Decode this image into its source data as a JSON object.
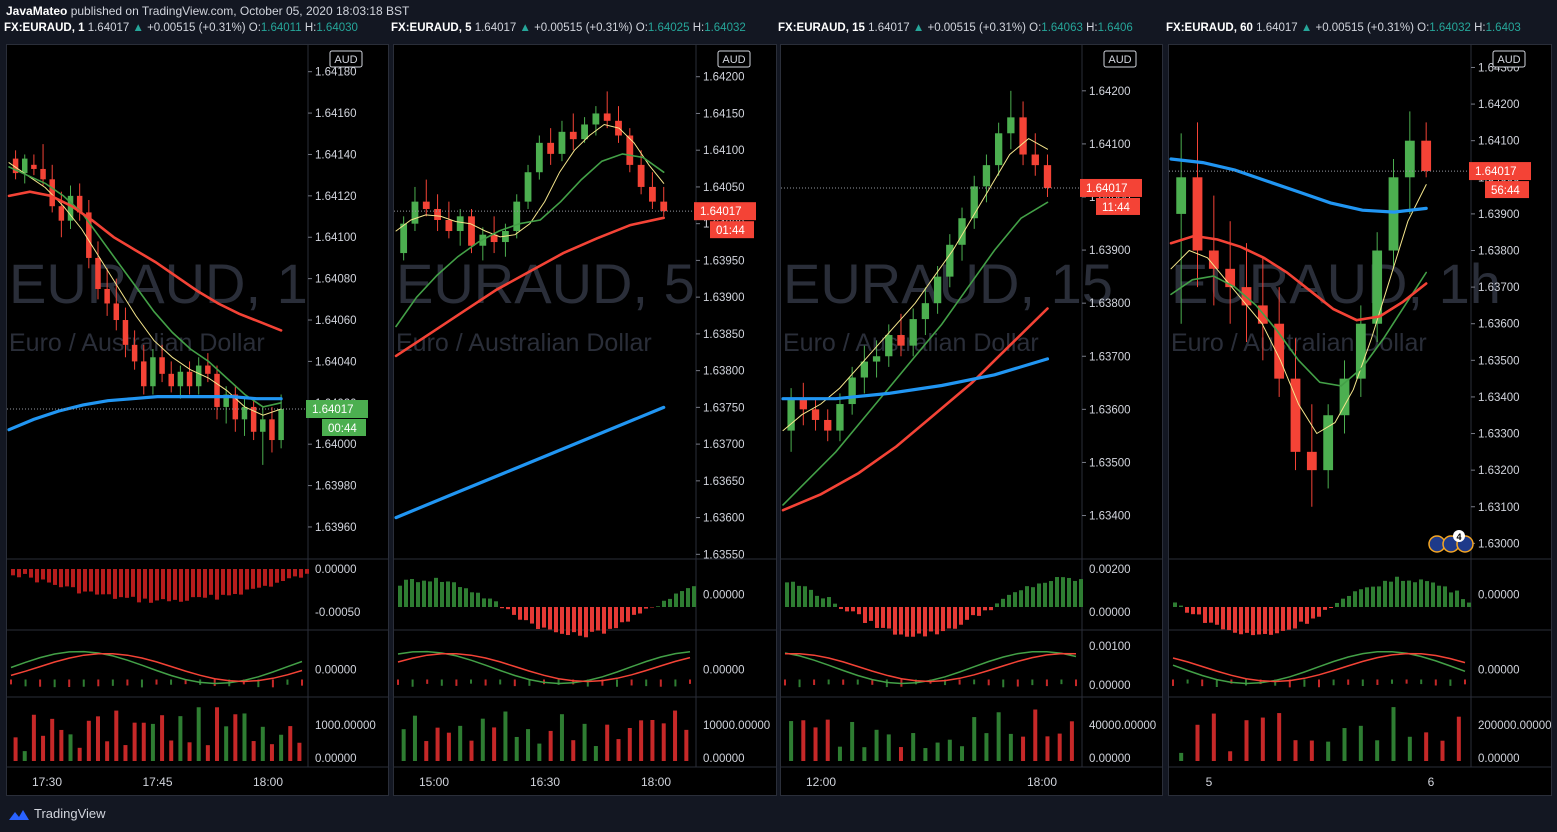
{
  "header": {
    "author": "JavaMateo",
    "published_text": " published on TradingView.com, October 05, 2020 18:03:18 BST"
  },
  "footer": {
    "brand": "TradingView"
  },
  "colors": {
    "background": "#000000",
    "up": "#26a69a",
    "candle_up": "#4caf50",
    "candle_down": "#f44336",
    "ma_fast": "#f5e68c",
    "ma_mid": "#43a047",
    "ma_slow": "#f44336",
    "ma_long": "#2196f3",
    "price_label_up": "#4caf50",
    "price_label_down": "#f44336"
  },
  "panels": [
    {
      "legend": {
        "symbol": "FX:EURAUD, 1",
        "last": "1.64017",
        "arrow": "▲",
        "change": "+0.00515 (+0.31%)",
        "open_label": "O:",
        "open": "1.64011",
        "high_label": "H:",
        "high": "1.64030"
      },
      "watermark": "EURAUD, 1",
      "watermark_sub": "Euro / Australian Dollar",
      "currency": "AUD",
      "price_ticks": [
        "1.64180",
        "1.64160",
        "1.64140",
        "1.64120",
        "1.64100",
        "1.64080",
        "1.64060",
        "1.64040",
        "1.64020",
        "1.64000",
        "1.63980",
        "1.63960"
      ],
      "price_range": [
        1.63945,
        1.6419
      ],
      "last_price": "1.64017",
      "countdown": "00:44",
      "label_dir": "up",
      "ind1_ticks": [
        "0.00000",
        "-0.00050"
      ],
      "ind2_ticks": [
        "0.00000"
      ],
      "ind3_ticks": [
        "1000.00000",
        "0.00000"
      ],
      "time_ticks": [
        "17:30",
        "17:45",
        "18:00"
      ]
    },
    {
      "legend": {
        "symbol": "FX:EURAUD, 5",
        "last": "1.64017",
        "arrow": "▲",
        "change": "+0.00515 (+0.31%)",
        "open_label": "O:",
        "open": "1.64025",
        "high_label": "H:",
        "high": "1.64032"
      },
      "watermark": "EURAUD, 5",
      "watermark_sub": "Euro / Australian Dollar",
      "currency": "AUD",
      "price_ticks": [
        "1.64200",
        "1.64150",
        "1.64100",
        "1.64050",
        "1.64000",
        "1.63950",
        "1.63900",
        "1.63850",
        "1.63800",
        "1.63750",
        "1.63700",
        "1.63650",
        "1.63600",
        "1.63550"
      ],
      "price_range": [
        1.63545,
        1.64235
      ],
      "last_price": "1.64017",
      "countdown": "01:44",
      "label_dir": "down",
      "ind1_ticks": [
        "0.00000"
      ],
      "ind2_ticks": [
        "0.00000"
      ],
      "ind3_ticks": [
        "10000.00000",
        "0.00000"
      ],
      "time_ticks": [
        "15:00",
        "16:30",
        "18:00"
      ]
    },
    {
      "legend": {
        "symbol": "FX:EURAUD, 15",
        "last": "1.64017",
        "arrow": "▲",
        "change": "+0.00515 (+0.31%)",
        "open_label": "O:",
        "open": "1.64063",
        "high_label": "H:",
        "high": "1.6406"
      },
      "watermark": "EURAUD, 15",
      "watermark_sub": "Euro / Australian Dollar",
      "currency": "AUD",
      "price_ticks": [
        "1.64200",
        "1.64100",
        "1.64000",
        "1.63900",
        "1.63800",
        "1.63700",
        "1.63600",
        "1.63500",
        "1.63400"
      ],
      "price_range": [
        1.6332,
        1.64275
      ],
      "last_price": "1.64017",
      "countdown": "11:44",
      "label_dir": "down",
      "ind1_ticks": [
        "0.00200",
        "0.00000"
      ],
      "ind2_ticks": [
        "0.00100",
        "0.00000"
      ],
      "ind3_ticks": [
        "40000.00000",
        "0.00000"
      ],
      "time_ticks": [
        "12:00",
        "18:00"
      ]
    },
    {
      "legend": {
        "symbol": "FX:EURAUD, 60",
        "last": "1.64017",
        "arrow": "▲",
        "change": "+0.00515 (+0.31%)",
        "open_label": "O:",
        "open": "1.64032",
        "high_label": "H:",
        "high": "1.6403"
      },
      "watermark": "EURAUD, 1h",
      "watermark_sub": "Euro / Australian Dollar",
      "currency": "AUD",
      "price_ticks": [
        "1.64300",
        "1.64200",
        "1.64100",
        "1.64000",
        "1.63900",
        "1.63800",
        "1.63700",
        "1.63600",
        "1.63500",
        "1.63400",
        "1.63300",
        "1.63200",
        "1.63100",
        "1.63000"
      ],
      "price_range": [
        1.6296,
        1.64345
      ],
      "last_price": "1.64017",
      "countdown": "56:44",
      "label_dir": "down",
      "events_count": "4",
      "ind1_ticks": [
        "0.00000"
      ],
      "ind2_ticks": [
        "0.00000"
      ],
      "ind3_ticks": [
        "200000.00000",
        "0.00000"
      ],
      "time_ticks": [
        "5",
        "6"
      ]
    }
  ],
  "chart_data": [
    {
      "type": "candlestick",
      "title": "EURAUD, 1",
      "candles": [
        [
          1.64138,
          1.64142,
          1.64128,
          1.64131
        ],
        [
          1.64131,
          1.6414,
          1.64126,
          1.64138
        ],
        [
          1.64135,
          1.6414,
          1.6413,
          1.64133
        ],
        [
          1.64133,
          1.64145,
          1.64125,
          1.64128
        ],
        [
          1.64128,
          1.64135,
          1.64112,
          1.64115
        ],
        [
          1.64115,
          1.64122,
          1.641,
          1.64108
        ],
        [
          1.64108,
          1.64125,
          1.64104,
          1.6412
        ],
        [
          1.6412,
          1.64126,
          1.64108,
          1.64112
        ],
        [
          1.64112,
          1.64118,
          1.64085,
          1.6409
        ],
        [
          1.6409,
          1.64098,
          1.6407,
          1.64075
        ],
        [
          1.64075,
          1.64085,
          1.64062,
          1.64068
        ],
        [
          1.64068,
          1.6408,
          1.64055,
          1.6406
        ],
        [
          1.6406,
          1.64066,
          1.64042,
          1.64048
        ],
        [
          1.64048,
          1.64055,
          1.64036,
          1.6404
        ],
        [
          1.6404,
          1.64048,
          1.64024,
          1.64028
        ],
        [
          1.64028,
          1.64046,
          1.64024,
          1.64042
        ],
        [
          1.64042,
          1.64048,
          1.6403,
          1.64034
        ],
        [
          1.64034,
          1.6404,
          1.64025,
          1.64028
        ],
        [
          1.64028,
          1.64038,
          1.64022,
          1.64035
        ],
        [
          1.64035,
          1.6404,
          1.64024,
          1.64028
        ],
        [
          1.64028,
          1.64042,
          1.64024,
          1.64038
        ],
        [
          1.64038,
          1.64044,
          1.6403,
          1.64034
        ],
        [
          1.64034,
          1.64038,
          1.64012,
          1.64018
        ],
        [
          1.64018,
          1.64028,
          1.6401,
          1.64024
        ],
        [
          1.64024,
          1.64028,
          1.64006,
          1.64012
        ],
        [
          1.64012,
          1.64022,
          1.64004,
          1.64018
        ],
        [
          1.64018,
          1.64022,
          1.64002,
          1.64006
        ],
        [
          1.64006,
          1.64018,
          1.6399,
          1.64012
        ],
        [
          1.64012,
          1.64018,
          1.63996,
          1.64002
        ],
        [
          1.64002,
          1.64024,
          1.63998,
          1.64017
        ]
      ],
      "ma": {
        "ma_fast": [
          1.64136,
          1.6413,
          1.64124,
          1.64115,
          1.64104,
          1.6409,
          1.64076,
          1.64062,
          1.6405,
          1.64042,
          1.64036,
          1.64032,
          1.64026,
          1.64018,
          1.64014,
          1.64017
        ],
        "ma_mid": [
          1.64134,
          1.6413,
          1.64126,
          1.6412,
          1.64112,
          1.641,
          1.64088,
          1.64076,
          1.64064,
          1.64054,
          1.64046,
          1.6404,
          1.64032,
          1.64024,
          1.64018,
          1.6402
        ],
        "ma_slow": [
          1.6412,
          1.64122,
          1.6412,
          1.64115,
          1.64108,
          1.641,
          1.64094,
          1.64088,
          1.64081,
          1.64074,
          1.64068,
          1.64063,
          1.64059,
          1.64055
        ],
        "ma_long": [
          1.64007,
          1.64012,
          1.64016,
          1.64019,
          1.64021,
          1.64022,
          1.64023,
          1.64023,
          1.64023,
          1.64023,
          1.64022,
          1.64022
        ]
      }
    },
    {
      "type": "candlestick",
      "title": "EURAUD, 5",
      "candles": [
        [
          1.6396,
          1.6401,
          1.6395,
          1.64
        ],
        [
          1.64,
          1.6405,
          1.6399,
          1.6403
        ],
        [
          1.6403,
          1.6406,
          1.6401,
          1.6402
        ],
        [
          1.6402,
          1.6404,
          1.6399,
          1.64005
        ],
        [
          1.64005,
          1.6403,
          1.6398,
          1.6399
        ],
        [
          1.6399,
          1.6402,
          1.6397,
          1.6401
        ],
        [
          1.6401,
          1.6402,
          1.6396,
          1.6397
        ],
        [
          1.6397,
          1.63995,
          1.6395,
          1.63985
        ],
        [
          1.63985,
          1.6401,
          1.6396,
          1.63975
        ],
        [
          1.63975,
          1.64,
          1.63955,
          1.6399
        ],
        [
          1.6399,
          1.6404,
          1.6398,
          1.6403
        ],
        [
          1.6403,
          1.6408,
          1.6402,
          1.6407
        ],
        [
          1.6407,
          1.6412,
          1.6406,
          1.6411
        ],
        [
          1.6411,
          1.6413,
          1.6408,
          1.64095
        ],
        [
          1.64095,
          1.6414,
          1.64085,
          1.64125
        ],
        [
          1.64125,
          1.6415,
          1.641,
          1.64115
        ],
        [
          1.64115,
          1.64145,
          1.6411,
          1.64135
        ],
        [
          1.64135,
          1.6416,
          1.6412,
          1.6415
        ],
        [
          1.6415,
          1.6418,
          1.6413,
          1.6414
        ],
        [
          1.6414,
          1.6416,
          1.6411,
          1.6412
        ],
        [
          1.6412,
          1.6413,
          1.6407,
          1.6408
        ],
        [
          1.6408,
          1.641,
          1.6404,
          1.6405
        ],
        [
          1.6405,
          1.6407,
          1.6402,
          1.6403
        ],
        [
          1.6403,
          1.6405,
          1.6401,
          1.64017
        ]
      ],
      "ma": {
        "ma_fast": [
          1.6399,
          1.64005,
          1.64012,
          1.6401,
          1.64003,
          1.64,
          1.6399,
          1.63982,
          1.63985,
          1.64,
          1.6403,
          1.6407,
          1.641,
          1.6412,
          1.64135,
          1.6413,
          1.6411,
          1.6408,
          1.64055
        ],
        "ma_mid": [
          1.6386,
          1.639,
          1.6393,
          1.63955,
          1.63975,
          1.6399,
          1.64,
          1.64005,
          1.6403,
          1.6406,
          1.64085,
          1.64095,
          1.6409,
          1.6407
        ],
        "ma_slow": [
          1.6382,
          1.6385,
          1.6388,
          1.6391,
          1.63935,
          1.6396,
          1.6398,
          1.63998,
          1.64008
        ],
        "ma_long": [
          1.636,
          1.6363,
          1.6366,
          1.6369,
          1.6372,
          1.6375
        ]
      }
    },
    {
      "type": "candlestick",
      "title": "EURAUD, 15",
      "candles": [
        [
          1.6356,
          1.6364,
          1.6352,
          1.6362
        ],
        [
          1.6362,
          1.6365,
          1.6357,
          1.636
        ],
        [
          1.636,
          1.6362,
          1.6356,
          1.6358
        ],
        [
          1.6358,
          1.636,
          1.6354,
          1.6356
        ],
        [
          1.6356,
          1.6363,
          1.6354,
          1.6361
        ],
        [
          1.6361,
          1.6368,
          1.6359,
          1.6366
        ],
        [
          1.6366,
          1.6372,
          1.6363,
          1.6369
        ],
        [
          1.6369,
          1.6373,
          1.6366,
          1.637
        ],
        [
          1.637,
          1.6376,
          1.6368,
          1.6374
        ],
        [
          1.6374,
          1.6378,
          1.637,
          1.6372
        ],
        [
          1.6372,
          1.6379,
          1.637,
          1.6377
        ],
        [
          1.6377,
          1.6383,
          1.6374,
          1.638
        ],
        [
          1.638,
          1.6387,
          1.6378,
          1.6385
        ],
        [
          1.6385,
          1.6393,
          1.6383,
          1.6391
        ],
        [
          1.6391,
          1.6398,
          1.6388,
          1.6396
        ],
        [
          1.6396,
          1.6404,
          1.6394,
          1.6402
        ],
        [
          1.6402,
          1.6408,
          1.6399,
          1.6406
        ],
        [
          1.6406,
          1.6414,
          1.6404,
          1.6412
        ],
        [
          1.6412,
          1.642,
          1.6409,
          1.6415
        ],
        [
          1.6415,
          1.6418,
          1.6406,
          1.6408
        ],
        [
          1.6408,
          1.6412,
          1.6404,
          1.6406
        ],
        [
          1.6406,
          1.6408,
          1.64,
          1.64017
        ]
      ],
      "ma": {
        "ma_fast": [
          1.6356,
          1.6359,
          1.6361,
          1.6364,
          1.6368,
          1.6372,
          1.6376,
          1.638,
          1.6385,
          1.639,
          1.6396,
          1.6402,
          1.6408,
          1.6411,
          1.6409
        ],
        "ma_mid": [
          1.6342,
          1.6347,
          1.6352,
          1.6358,
          1.6364,
          1.637,
          1.6376,
          1.6383,
          1.639,
          1.6396,
          1.6399
        ],
        "ma_slow": [
          1.6341,
          1.6344,
          1.6348,
          1.6353,
          1.6359,
          1.6365,
          1.6372,
          1.6379
        ],
        "ma_long": [
          1.6362,
          1.6362,
          1.6363,
          1.63645,
          1.63665,
          1.63695
        ]
      }
    },
    {
      "type": "candlestick",
      "title": "EURAUD, 1h",
      "candles": [
        [
          1.639,
          1.6412,
          1.636,
          1.64
        ],
        [
          1.64,
          1.6415,
          1.637,
          1.638
        ],
        [
          1.638,
          1.6395,
          1.6365,
          1.6375
        ],
        [
          1.6375,
          1.6388,
          1.636,
          1.637
        ],
        [
          1.637,
          1.6382,
          1.6355,
          1.6365
        ],
        [
          1.6365,
          1.6378,
          1.635,
          1.636
        ],
        [
          1.636,
          1.637,
          1.634,
          1.6345
        ],
        [
          1.6345,
          1.6356,
          1.632,
          1.6325
        ],
        [
          1.6325,
          1.6338,
          1.631,
          1.632
        ],
        [
          1.632,
          1.6338,
          1.6315,
          1.6335
        ],
        [
          1.6335,
          1.635,
          1.633,
          1.6345
        ],
        [
          1.6345,
          1.6365,
          1.634,
          1.636
        ],
        [
          1.636,
          1.6385,
          1.6355,
          1.638
        ],
        [
          1.638,
          1.6405,
          1.6375,
          1.64
        ],
        [
          1.64,
          1.6418,
          1.639,
          1.641
        ],
        [
          1.641,
          1.6415,
          1.64,
          1.64017
        ]
      ],
      "ma": {
        "ma_fast": [
          1.6375,
          1.638,
          1.6378,
          1.6372,
          1.6366,
          1.636,
          1.635,
          1.6338,
          1.633,
          1.6333,
          1.6342,
          1.6356,
          1.6372,
          1.6388,
          1.6398
        ],
        "ma_mid": [
          1.6368,
          1.6372,
          1.6373,
          1.637,
          1.6365,
          1.6358,
          1.635,
          1.6344,
          1.6343,
          1.6348,
          1.6356,
          1.6365,
          1.6374
        ],
        "ma_slow": [
          1.6382,
          1.6384,
          1.6383,
          1.6381,
          1.6378,
          1.6374,
          1.6369,
          1.6364,
          1.6361,
          1.6362,
          1.6366,
          1.6371
        ],
        "ma_long": [
          1.6405,
          1.6404,
          1.6402,
          1.6399,
          1.6396,
          1.6393,
          1.6391,
          1.63905,
          1.63915
        ]
      }
    }
  ]
}
